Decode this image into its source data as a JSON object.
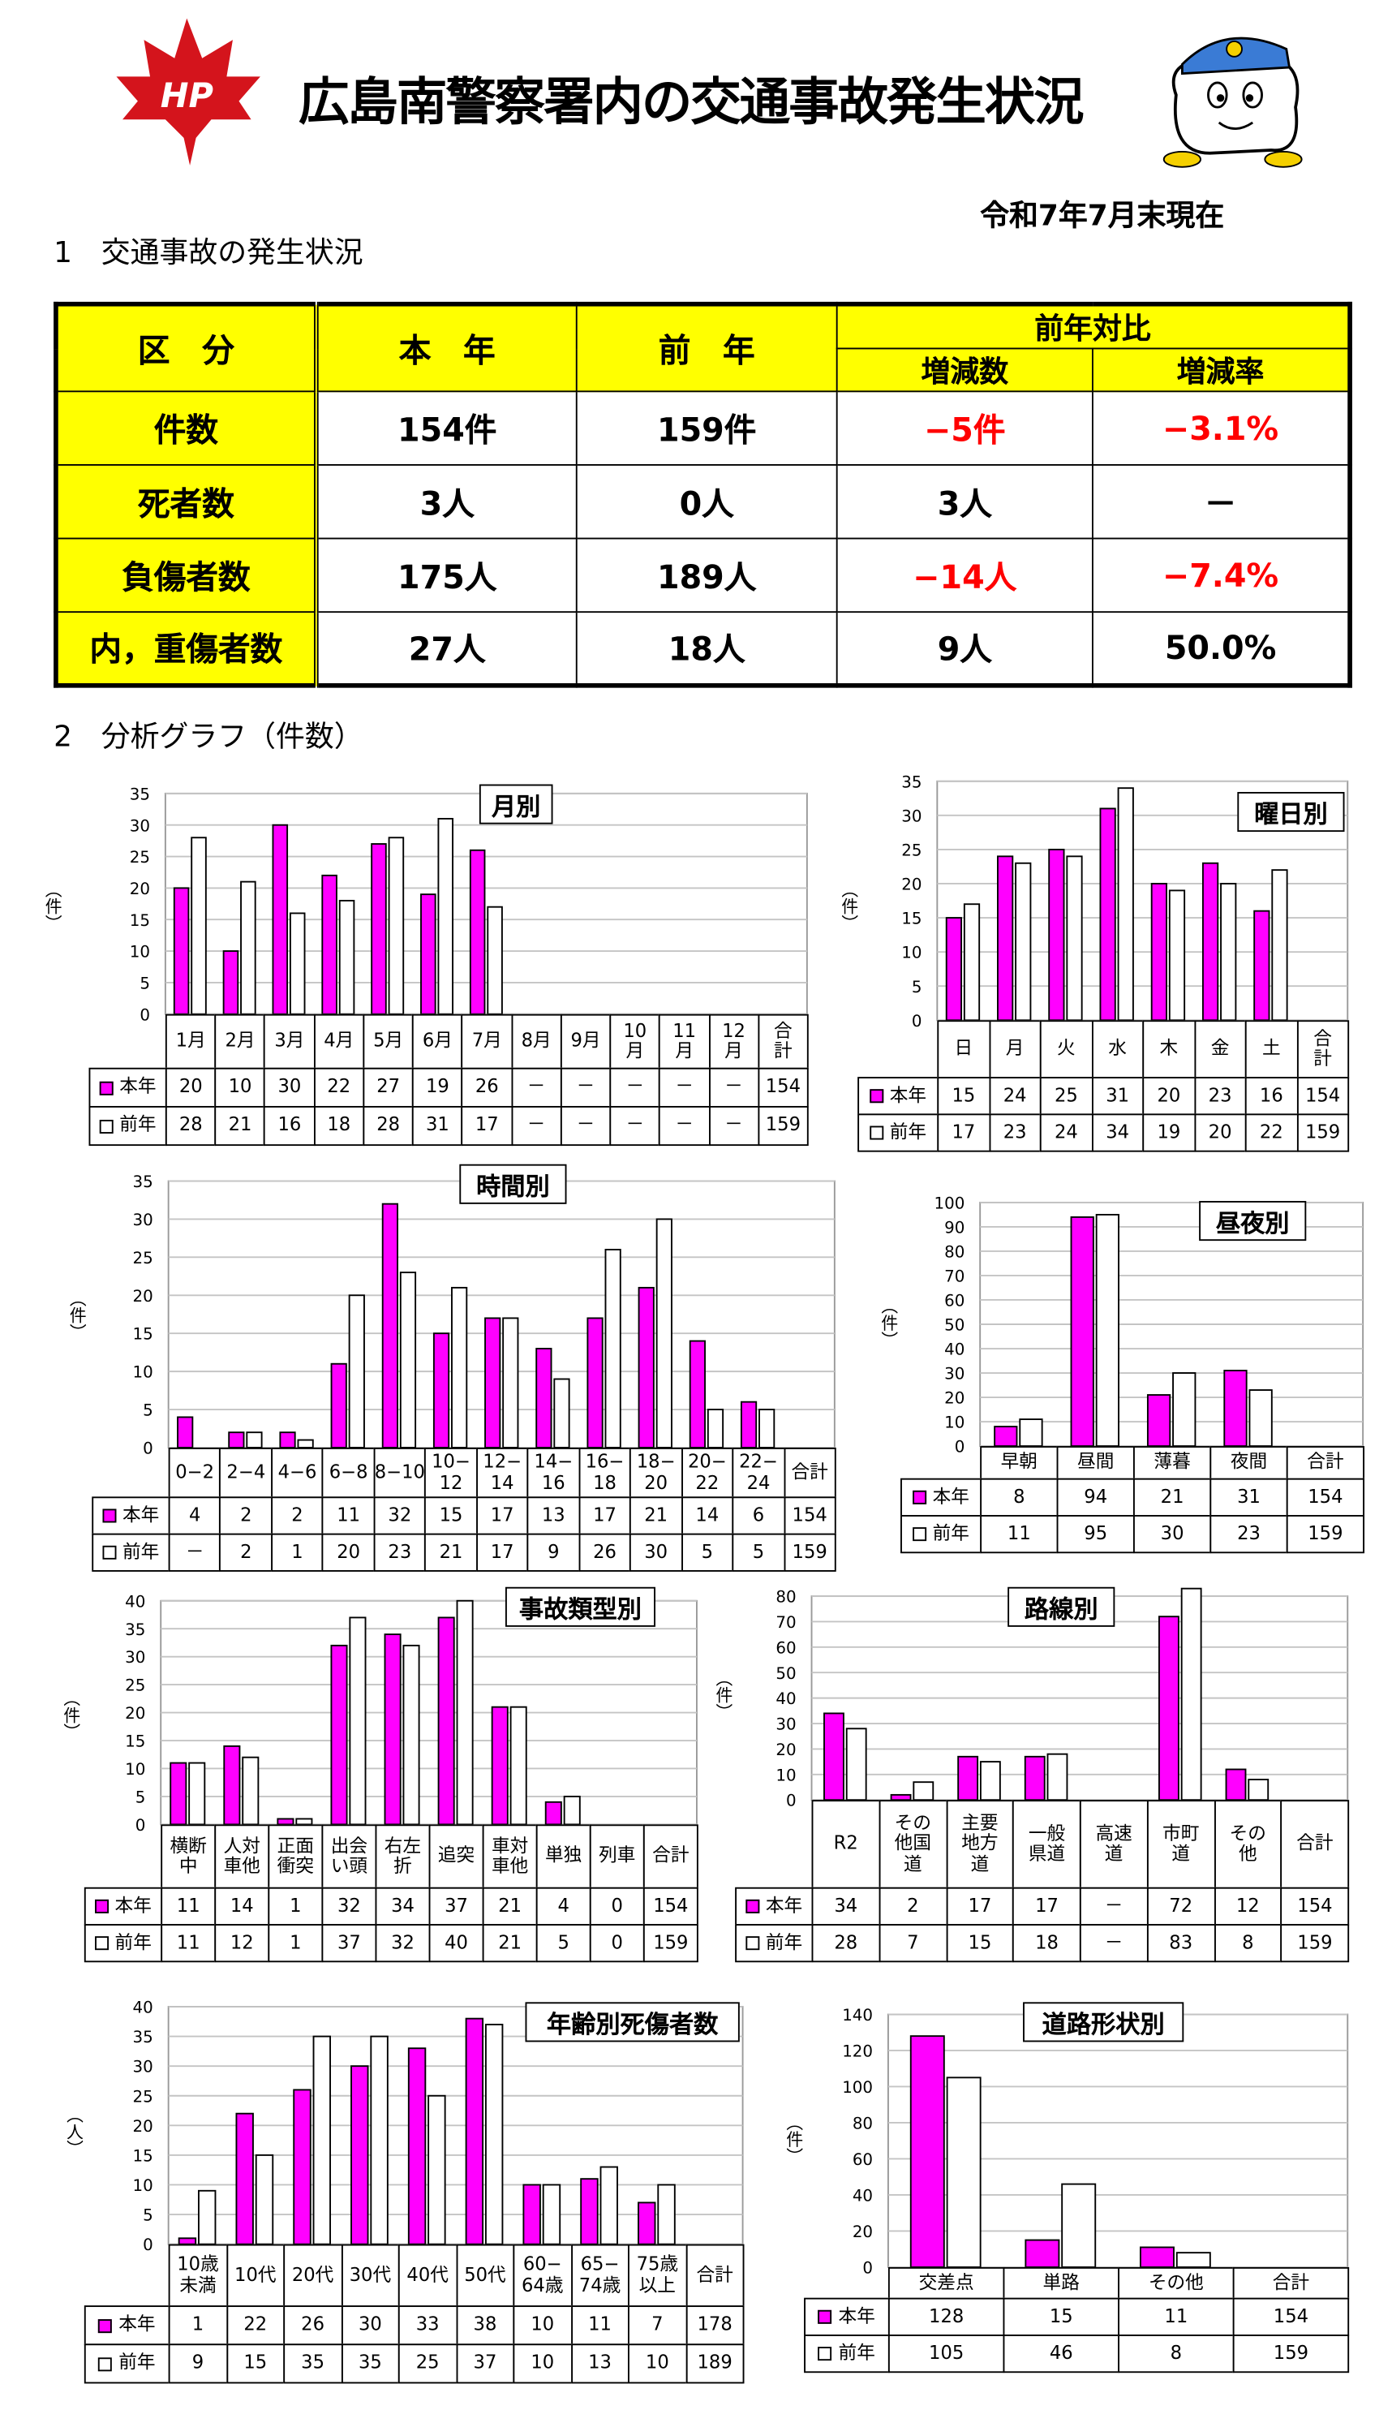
{
  "header": {
    "logo_text": "HP",
    "title": "広島南警察署内の交通事故発生状況",
    "date": "令和7年7月末現在"
  },
  "section1": "1　交通事故の発生状況",
  "table": {
    "header": [
      "区　分",
      "本　年",
      "前　年",
      "前年対比"
    ],
    "subheader": [
      "増減数",
      "増減率"
    ],
    "rows": [
      [
        "件数",
        "154件",
        "159件",
        "−5件",
        "−3.1%"
      ],
      [
        "死者数",
        "3人",
        "0人",
        "3人",
        "－"
      ],
      [
        "負傷者数",
        "175人",
        "189人",
        "−14人",
        "−7.4%"
      ],
      [
        "内，重傷者数",
        "27人",
        "18人",
        "9人",
        "50.0%"
      ]
    ]
  },
  "section2": "2　分析グラフ（件数）",
  "chart_data": [
    {
      "type": "bar",
      "title": "月別",
      "y_label": "（件）",
      "categories": [
        "1月",
        "2月",
        "3月",
        "4月",
        "5月",
        "6月",
        "7月",
        "8月",
        "9月",
        "10\n月",
        "11\n月",
        "12\n月"
      ],
      "total_label": "合\n計",
      "series": [
        {
          "name": "本年",
          "color": "#ff00ff",
          "values": [
            20,
            10,
            30,
            22,
            27,
            19,
            26,
            null,
            null,
            null,
            null,
            null
          ],
          "value_labels": [
            "20",
            "10",
            "30",
            "22",
            "27",
            "19",
            "26",
            "－",
            "－",
            "－",
            "－",
            "－"
          ],
          "total": 154
        },
        {
          "name": "前年",
          "color": "#ffffff",
          "values": [
            28,
            21,
            16,
            18,
            28,
            31,
            17,
            null,
            null,
            null,
            null,
            null
          ],
          "value_labels": [
            "28",
            "21",
            "16",
            "18",
            "28",
            "31",
            "17",
            "－",
            "－",
            "－",
            "－",
            "－"
          ],
          "total": 159
        }
      ],
      "ylim": [
        0,
        35
      ],
      "yticks": [
        0,
        5,
        10,
        15,
        20,
        25,
        30,
        35
      ],
      "grid": true
    },
    {
      "type": "bar",
      "title": "曜日別",
      "y_label": "（件）",
      "categories": [
        "日",
        "月",
        "火",
        "水",
        "木",
        "金",
        "土"
      ],
      "total_label": "合\n計",
      "series": [
        {
          "name": "本年",
          "color": "#ff00ff",
          "values": [
            15,
            24,
            25,
            31,
            20,
            23,
            16
          ],
          "total": 154
        },
        {
          "name": "前年",
          "color": "#ffffff",
          "values": [
            17,
            23,
            24,
            34,
            19,
            20,
            22
          ],
          "total": 159
        }
      ],
      "ylim": [
        0,
        35
      ],
      "yticks": [
        0,
        5,
        10,
        15,
        20,
        25,
        30,
        35
      ],
      "grid": true
    },
    {
      "type": "bar",
      "title": "時間別",
      "y_label": "（件）",
      "categories": [
        "0−2",
        "2−4",
        "4−6",
        "6−8",
        "8−10",
        "10−\n12",
        "12−\n14",
        "14−\n16",
        "16−\n18",
        "18−\n20",
        "20−\n22",
        "22−\n24"
      ],
      "total_label": "合計",
      "series": [
        {
          "name": "本年",
          "color": "#ff00ff",
          "values": [
            4,
            2,
            2,
            11,
            32,
            15,
            17,
            13,
            17,
            21,
            14,
            6
          ],
          "total": 154
        },
        {
          "name": "前年",
          "color": "#ffffff",
          "values": [
            null,
            2,
            1,
            20,
            23,
            21,
            17,
            9,
            26,
            30,
            5,
            5
          ],
          "value_labels": [
            "－",
            "2",
            "1",
            "20",
            "23",
            "21",
            "17",
            "9",
            "26",
            "30",
            "5",
            "5"
          ],
          "total": 159
        }
      ],
      "ylim": [
        0,
        35
      ],
      "yticks": [
        0,
        5,
        10,
        15,
        20,
        25,
        30,
        35
      ],
      "grid": true
    },
    {
      "type": "bar",
      "title": "昼夜別",
      "y_label": "（件）",
      "categories": [
        "早朝",
        "昼間",
        "薄暮",
        "夜間"
      ],
      "total_label": "合計",
      "series": [
        {
          "name": "本年",
          "color": "#ff00ff",
          "values": [
            8,
            94,
            21,
            31
          ],
          "total": 154
        },
        {
          "name": "前年",
          "color": "#ffffff",
          "values": [
            11,
            95,
            30,
            23
          ],
          "total": 159
        }
      ],
      "ylim": [
        0,
        100
      ],
      "yticks": [
        0,
        10,
        20,
        30,
        40,
        50,
        60,
        70,
        80,
        90,
        100
      ],
      "grid": true
    },
    {
      "type": "bar",
      "title": "事故類型別",
      "y_label": "（件）",
      "categories": [
        "横断\n中",
        "人対\n車他",
        "正面\n衝突",
        "出会\nい頭",
        "右左\n折",
        "追突",
        "車対\n車他",
        "単独",
        "列車"
      ],
      "total_label": "合計",
      "series": [
        {
          "name": "本年",
          "color": "#ff00ff",
          "values": [
            11,
            14,
            1,
            32,
            34,
            37,
            21,
            4,
            0
          ],
          "total": 154
        },
        {
          "name": "前年",
          "color": "#ffffff",
          "values": [
            11,
            12,
            1,
            37,
            32,
            40,
            21,
            5,
            0
          ],
          "total": 159
        }
      ],
      "ylim": [
        0,
        40
      ],
      "yticks": [
        0,
        5,
        10,
        15,
        20,
        25,
        30,
        35,
        40
      ],
      "grid": true
    },
    {
      "type": "bar",
      "title": "路線別",
      "y_label": "（件）",
      "categories": [
        "R2",
        "その\n他国\n道",
        "主要\n地方\n道",
        "一般\n県道",
        "高速\n道",
        "市町\n道",
        "その\n他"
      ],
      "total_label": "合計",
      "series": [
        {
          "name": "本年",
          "color": "#ff00ff",
          "values": [
            34,
            2,
            17,
            17,
            null,
            72,
            12
          ],
          "value_labels": [
            "34",
            "2",
            "17",
            "17",
            "－",
            "72",
            "12"
          ],
          "total": 154
        },
        {
          "name": "前年",
          "color": "#ffffff",
          "values": [
            28,
            7,
            15,
            18,
            null,
            83,
            8
          ],
          "value_labels": [
            "28",
            "7",
            "15",
            "18",
            "－",
            "83",
            "8"
          ],
          "total": 159
        }
      ],
      "ylim": [
        0,
        80
      ],
      "yticks": [
        0,
        10,
        20,
        30,
        40,
        50,
        60,
        70,
        80
      ],
      "grid": true
    },
    {
      "type": "bar",
      "title": "年齢別死傷者数",
      "y_label": "（人）",
      "categories": [
        "10歳\n未満",
        "10代",
        "20代",
        "30代",
        "40代",
        "50代",
        "60−\n64歳",
        "65−\n74歳",
        "75歳\n以上"
      ],
      "total_label": "合計",
      "series": [
        {
          "name": "本年",
          "color": "#ff00ff",
          "values": [
            1,
            22,
            26,
            30,
            33,
            38,
            10,
            11,
            7
          ],
          "total": 178
        },
        {
          "name": "前年",
          "color": "#ffffff",
          "values": [
            9,
            15,
            35,
            35,
            25,
            37,
            10,
            13,
            10
          ],
          "total": 189
        }
      ],
      "ylim": [
        0,
        40
      ],
      "yticks": [
        0,
        5,
        10,
        15,
        20,
        25,
        30,
        35,
        40
      ],
      "grid": true
    },
    {
      "type": "bar",
      "title": "道路形状別",
      "y_label": "（件）",
      "categories": [
        "交差点",
        "単路",
        "その他"
      ],
      "total_label": "合計",
      "series": [
        {
          "name": "本年",
          "color": "#ff00ff",
          "values": [
            128,
            15,
            11
          ],
          "total": 154
        },
        {
          "name": "前年",
          "color": "#ffffff",
          "values": [
            105,
            46,
            8
          ],
          "total": 159
        }
      ],
      "ylim": [
        0,
        140
      ],
      "yticks": [
        0,
        20,
        40,
        60,
        80,
        100,
        120,
        140
      ],
      "grid": true
    }
  ]
}
